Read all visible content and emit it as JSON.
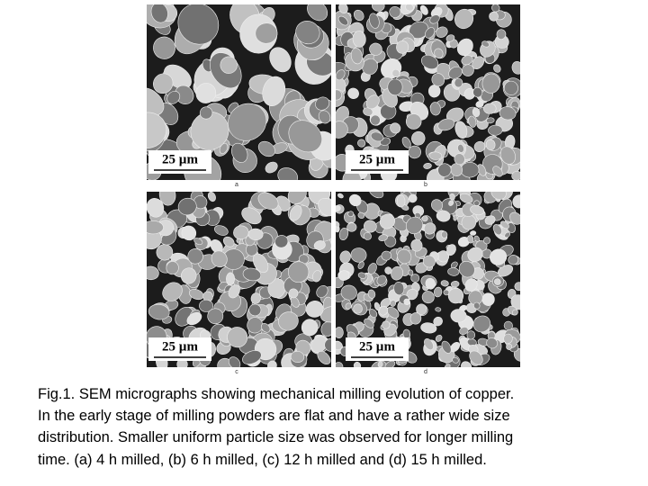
{
  "figure": {
    "panels": [
      {
        "label": "a",
        "scale_bar": "25 µm"
      },
      {
        "label": "b",
        "scale_bar": "25 µm"
      },
      {
        "label": "c",
        "scale_bar": "25 µm"
      },
      {
        "label": "d",
        "scale_bar": "25 µm"
      }
    ],
    "caption": {
      "lines": [
        "Fig.1. SEM micrographs showing mechanical milling evolution of copper.",
        "In the early stage of milling powders are flat and have a rather wide size",
        "distribution. Smaller uniform particle size was observed for longer milling",
        "time. (a) 4 h milled, (b) 6 h milled, (c) 12 h milled and (d) 15 h milled."
      ]
    }
  }
}
